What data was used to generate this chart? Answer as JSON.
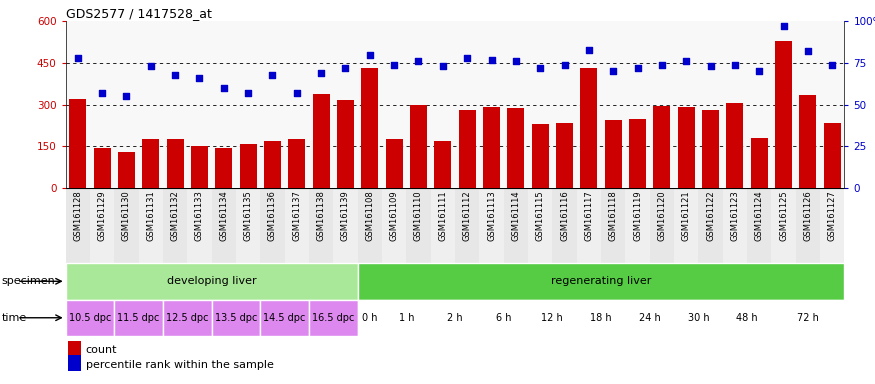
{
  "title": "GDS2577 / 1417528_at",
  "samples": [
    "GSM161128",
    "GSM161129",
    "GSM161130",
    "GSM161131",
    "GSM161132",
    "GSM161133",
    "GSM161134",
    "GSM161135",
    "GSM161136",
    "GSM161137",
    "GSM161138",
    "GSM161139",
    "GSM161108",
    "GSM161109",
    "GSM161110",
    "GSM161111",
    "GSM161112",
    "GSM161113",
    "GSM161114",
    "GSM161115",
    "GSM161116",
    "GSM161117",
    "GSM161118",
    "GSM161119",
    "GSM161120",
    "GSM161121",
    "GSM161122",
    "GSM161123",
    "GSM161124",
    "GSM161125",
    "GSM161126",
    "GSM161127"
  ],
  "counts": [
    320,
    143,
    130,
    175,
    175,
    152,
    143,
    160,
    170,
    175,
    340,
    315,
    430,
    175,
    300,
    168,
    280,
    293,
    287,
    230,
    235,
    430,
    245,
    247,
    295,
    290,
    280,
    305,
    180,
    530,
    335,
    235
  ],
  "percentiles": [
    78,
    57,
    55,
    73,
    68,
    66,
    60,
    57,
    68,
    57,
    69,
    72,
    80,
    74,
    76,
    73,
    78,
    77,
    76,
    72,
    74,
    83,
    70,
    72,
    74,
    76,
    73,
    74,
    70,
    97,
    82,
    74
  ],
  "bar_color": "#cc0000",
  "dot_color": "#0000cc",
  "ylim_left": [
    0,
    600
  ],
  "ylim_right": [
    0,
    100
  ],
  "yticks_left": [
    0,
    150,
    300,
    450,
    600
  ],
  "yticks_right": [
    0,
    25,
    50,
    75,
    100
  ],
  "ytick_labels_right": [
    "0",
    "25",
    "50",
    "75",
    "100%"
  ],
  "grid_values": [
    150,
    300,
    450
  ],
  "specimen_groups": [
    {
      "label": "developing liver",
      "start": 0,
      "end": 12,
      "color": "#aae899"
    },
    {
      "label": "regenerating liver",
      "start": 12,
      "end": 32,
      "color": "#55cc44"
    }
  ],
  "time_groups": [
    {
      "label": "10.5 dpc",
      "start": 0,
      "end": 2
    },
    {
      "label": "11.5 dpc",
      "start": 2,
      "end": 4
    },
    {
      "label": "12.5 dpc",
      "start": 4,
      "end": 6
    },
    {
      "label": "13.5 dpc",
      "start": 6,
      "end": 8
    },
    {
      "label": "14.5 dpc",
      "start": 8,
      "end": 10
    },
    {
      "label": "16.5 dpc",
      "start": 10,
      "end": 12
    },
    {
      "label": "0 h",
      "start": 12,
      "end": 13
    },
    {
      "label": "1 h",
      "start": 13,
      "end": 15
    },
    {
      "label": "2 h",
      "start": 15,
      "end": 17
    },
    {
      "label": "6 h",
      "start": 17,
      "end": 19
    },
    {
      "label": "12 h",
      "start": 19,
      "end": 21
    },
    {
      "label": "18 h",
      "start": 21,
      "end": 23
    },
    {
      "label": "24 h",
      "start": 23,
      "end": 25
    },
    {
      "label": "30 h",
      "start": 25,
      "end": 27
    },
    {
      "label": "48 h",
      "start": 27,
      "end": 29
    },
    {
      "label": "72 h",
      "start": 29,
      "end": 32
    }
  ],
  "time_color_dpc": "#dd88ee",
  "time_color_h": "#ffffff",
  "xtick_bg": "#d8d8d8",
  "chart_bg": "#f8f8f8",
  "specimen_label": "specimen",
  "time_label": "time",
  "legend_count_label": "count",
  "legend_pct_label": "percentile rank within the sample"
}
